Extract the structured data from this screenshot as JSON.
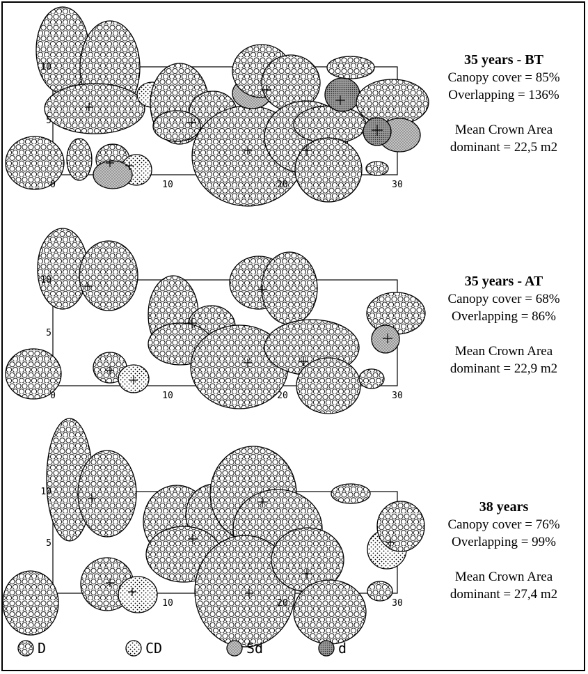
{
  "panels": [
    {
      "title": "35 years - BT",
      "canopy": "Canopy cover = 85%",
      "overlap": "Overlapping = 136%",
      "mca_label": "Mean Crown Area",
      "mca_value": "dominant  = 22,5 m2"
    },
    {
      "title": "35 years - AT",
      "canopy": "Canopy cover = 68%",
      "overlap": "Overlapping = 86%",
      "mca_label": "Mean Crown Area",
      "mca_value": "dominant  = 22,9 m2"
    },
    {
      "title": "38 years",
      "canopy": "Canopy cover = 76%",
      "overlap": "Overlapping = 99%",
      "mca_label": "Mean Crown Area",
      "mca_value": "dominant  = 27,4 m2"
    }
  ],
  "axes": {
    "x_ticks": [
      "0",
      "10",
      "20",
      "30"
    ],
    "y_ticks": [
      "0",
      "5",
      "10"
    ]
  },
  "legend": [
    {
      "code": "D",
      "label": "D"
    },
    {
      "code": "CD",
      "label": "CD"
    },
    {
      "code": "Sd",
      "label": "Sd"
    },
    {
      "code": "d",
      "label": "d"
    }
  ],
  "colors": {
    "line": "#000000",
    "background": "#ffffff",
    "sd_fill": "#c4c4c4",
    "d_fill": "#9a9a9a"
  }
}
